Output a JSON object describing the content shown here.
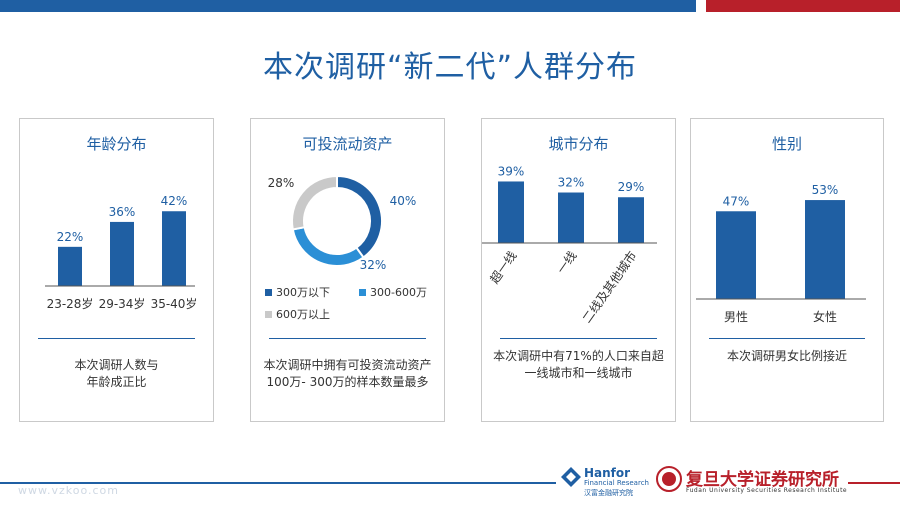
{
  "title": "本次调研“新二代”人群分布",
  "colors": {
    "accent": "#1f5fa3",
    "red": "#b8202a",
    "mid_blue": "#2b8fd6",
    "grey": "#c9c9c9"
  },
  "chart_data": [
    {
      "type": "bar",
      "title": "年龄分布",
      "categories": [
        "23-28岁",
        "29-34岁",
        "35-40岁"
      ],
      "values": [
        22,
        36,
        42
      ],
      "value_labels": [
        "22%",
        "36%",
        "42%"
      ],
      "ylim": [
        0,
        50
      ],
      "note": [
        "本次调研人数与",
        "年龄成正比"
      ]
    },
    {
      "type": "pie",
      "title": "可投流动资产",
      "categories": [
        "300万以下",
        "300-600万",
        "600万以上"
      ],
      "values": [
        40,
        32,
        28
      ],
      "value_labels": [
        "40%",
        "32%",
        "28%"
      ],
      "colors": [
        "#1f5fa3",
        "#2b8fd6",
        "#c9c9c9"
      ],
      "legend_position": "bottom",
      "note": [
        "本次调研中拥有可投资流动资产",
        "100万- 300万的样本数量最多"
      ]
    },
    {
      "type": "bar",
      "title": "城市分布",
      "categories": [
        "超一线",
        "一线",
        "二线及其他城市"
      ],
      "values": [
        39,
        32,
        29
      ],
      "value_labels": [
        "39%",
        "32%",
        "29%"
      ],
      "ylim": [
        0,
        45
      ],
      "note": [
        "本次调研中有71%的人口来自超",
        "一线城市和一线城市"
      ]
    },
    {
      "type": "bar",
      "title": "性别",
      "categories": [
        "男性",
        "女性"
      ],
      "values": [
        47,
        53
      ],
      "value_labels": [
        "47%",
        "53%"
      ],
      "ylim": [
        0,
        60
      ],
      "note": [
        "本次调研男女比例接近"
      ]
    }
  ],
  "footer": {
    "watermark": "www.vzkoo.com",
    "logo1_main": "Hanfor",
    "logo1_sub": "Financial Research",
    "logo1_cn": "汉富金融研究院",
    "logo2_cn": "复旦大学证券研究所",
    "logo2_en": "Fudan University Securities Research Institute"
  }
}
